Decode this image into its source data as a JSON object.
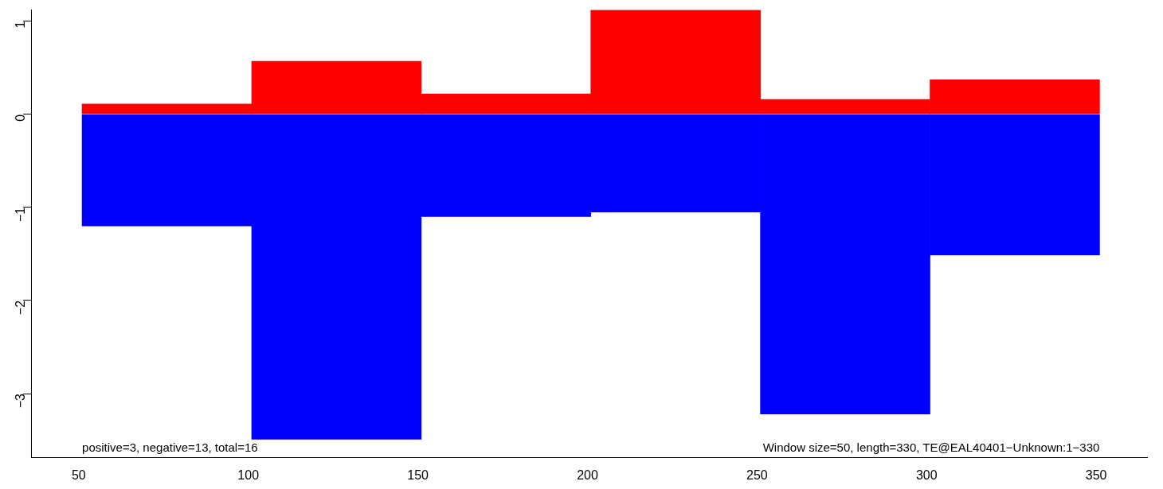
{
  "chart_data": {
    "type": "bar",
    "x": [
      76,
      126,
      176,
      226,
      276,
      326
    ],
    "series": [
      {
        "color": "#ff0000",
        "values": [
          0.11,
          0.57,
          0.22,
          1.12,
          0.16,
          0.37
        ]
      },
      {
        "color": "#0000ff",
        "values": [
          -1.2,
          -3.49,
          -1.1,
          -1.05,
          -3.22,
          -1.51
        ]
      }
    ],
    "xlim": [
      36,
      365
    ],
    "xticks": [
      50,
      100,
      150,
      200,
      250,
      300,
      350
    ],
    "ylim": [
      -3.69,
      1.12
    ],
    "yticks": [
      {
        "value": 1,
        "label": "1"
      },
      {
        "value": 0,
        "label": "0"
      },
      {
        "value": -1,
        "label": "−1"
      },
      {
        "value": -2,
        "label": "−2"
      },
      {
        "value": -3,
        "label": "−3"
      }
    ],
    "grid": false,
    "legend": false,
    "stacked": true,
    "annotations": [
      "positive=3, negative=13, total=16",
      "Window size=50, length=330, TE@EAL40401−Unknown:1−330"
    ]
  }
}
